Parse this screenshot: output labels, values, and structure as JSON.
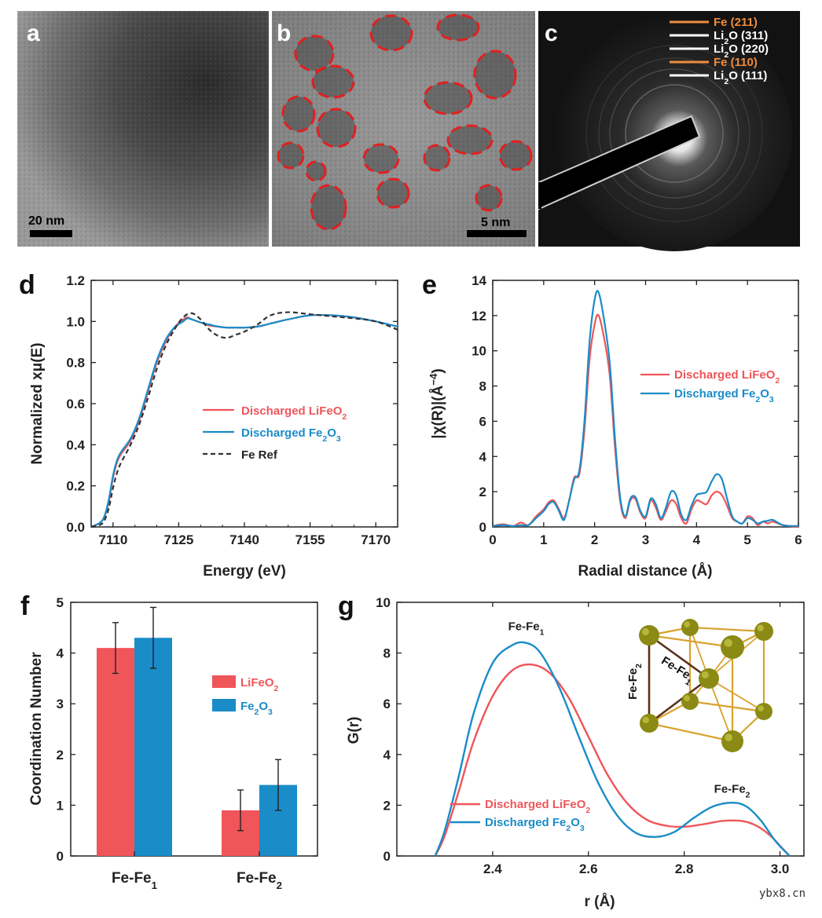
{
  "tem": {
    "a": {
      "letter": "a",
      "scale": "20 nm"
    },
    "b": {
      "letter": "b",
      "scale": "5 nm"
    },
    "c": {
      "letter": "c",
      "rings": [
        {
          "main": "Fe (211)",
          "sub": "",
          "rest": "",
          "color": "#f08c3c"
        },
        {
          "main": "Li",
          "sub": "2",
          "rest": "O (311)",
          "color": "#ffffff"
        },
        {
          "main": "Li",
          "sub": "2",
          "rest": "O (220)",
          "color": "#ffffff"
        },
        {
          "main": "Fe (110)",
          "sub": "",
          "rest": "",
          "color": "#f08c3c"
        },
        {
          "main": "Li",
          "sub": "2",
          "rest": "O (111)",
          "color": "#ffffff"
        }
      ]
    }
  },
  "colors": {
    "red": "#f0555a",
    "blue": "#1a8cc8",
    "ref": "#333333",
    "orange": "#f08c3c"
  },
  "chart_data": [
    {
      "panel": "d",
      "type": "line",
      "xlabel": "Energy (eV)",
      "ylabel": "Normalized xμ(E)",
      "xlim": [
        7105,
        7175
      ],
      "ylim": [
        0,
        1.2
      ],
      "xticks": [
        7110,
        7125,
        7140,
        7155,
        7170
      ],
      "yticks": [
        "0.0",
        "0.2",
        "0.4",
        "0.6",
        "0.8",
        "1.0",
        "1.2"
      ],
      "series": [
        {
          "name": "Discharged LiFeO2",
          "label_main": "Discharged LiFeO",
          "label_sub": "2",
          "label_after": "",
          "color": "#f0555a",
          "dash": "",
          "x": [
            7105,
            7107,
            7108,
            7109,
            7110,
            7111,
            7112,
            7114,
            7116,
            7118,
            7120,
            7122,
            7124,
            7126,
            7127,
            7128,
            7130,
            7132,
            7134,
            7136,
            7138,
            7140,
            7143,
            7146,
            7150,
            7155,
            7160,
            7165,
            7170,
            7175
          ],
          "y": [
            0.0,
            0.02,
            0.05,
            0.12,
            0.24,
            0.32,
            0.36,
            0.42,
            0.52,
            0.66,
            0.8,
            0.9,
            0.97,
            1.01,
            1.02,
            1.01,
            0.995,
            0.98,
            0.975,
            0.97,
            0.97,
            0.97,
            0.975,
            0.99,
            1.01,
            1.03,
            1.03,
            1.02,
            1.0,
            0.975
          ]
        },
        {
          "name": "Discharged Fe2O3",
          "label_main": "Discharged Fe",
          "label_sub": "2",
          "label_after": "O",
          "label_sub2": "3",
          "color": "#1a8cc8",
          "dash": "",
          "x": [
            7105,
            7107,
            7108,
            7109,
            7110,
            7111,
            7112,
            7114,
            7116,
            7118,
            7120,
            7122,
            7124,
            7126,
            7127,
            7128,
            7130,
            7132,
            7134,
            7136,
            7138,
            7140,
            7143,
            7146,
            7150,
            7155,
            7160,
            7165,
            7170,
            7175
          ],
          "y": [
            0.0,
            0.02,
            0.05,
            0.13,
            0.25,
            0.33,
            0.37,
            0.43,
            0.53,
            0.67,
            0.81,
            0.91,
            0.97,
            1.0,
            1.015,
            1.01,
            0.995,
            0.985,
            0.975,
            0.97,
            0.97,
            0.97,
            0.975,
            0.99,
            1.01,
            1.03,
            1.03,
            1.02,
            1.0,
            0.975
          ]
        },
        {
          "name": "Fe Ref",
          "label_main": "Fe Ref",
          "label_sub": "",
          "label_after": "",
          "color": "#333333",
          "dash": "6,4",
          "x": [
            7105,
            7107,
            7108,
            7109,
            7110,
            7111,
            7112,
            7114,
            7116,
            7118,
            7120,
            7122,
            7124,
            7126,
            7128,
            7130,
            7132,
            7134,
            7136,
            7138,
            7140,
            7143,
            7146,
            7150,
            7155,
            7160,
            7165,
            7170,
            7175
          ],
          "y": [
            0.0,
            0.01,
            0.03,
            0.09,
            0.19,
            0.27,
            0.32,
            0.4,
            0.5,
            0.63,
            0.77,
            0.88,
            0.96,
            1.02,
            1.04,
            1.01,
            0.96,
            0.93,
            0.92,
            0.935,
            0.95,
            0.985,
            1.03,
            1.045,
            1.035,
            1.025,
            1.015,
            1.0,
            0.96
          ]
        }
      ]
    },
    {
      "panel": "e",
      "type": "line",
      "xlabel": "Radial distance (Å)",
      "ylabel": "|χ(R)|(Å⁻⁴)",
      "ylabel_main": "|χ(R)|(Å",
      "ylabel_sup": "−4",
      "ylabel_end": ")",
      "xlim": [
        0,
        6
      ],
      "ylim": [
        0,
        14
      ],
      "xticks": [
        0,
        1,
        2,
        3,
        4,
        5,
        6
      ],
      "yticks": [
        0,
        2,
        4,
        6,
        8,
        10,
        12,
        14
      ],
      "series": [
        {
          "name": "Discharged LiFeO2",
          "label_main": "Discharged LiFeO",
          "label_sub": "2",
          "label_after": "",
          "color": "#f0555a",
          "x": [
            0,
            0.2,
            0.4,
            0.55,
            0.7,
            0.85,
            1.0,
            1.1,
            1.2,
            1.3,
            1.4,
            1.5,
            1.6,
            1.7,
            1.8,
            1.9,
            2.0,
            2.08,
            2.2,
            2.3,
            2.4,
            2.5,
            2.6,
            2.7,
            2.8,
            2.9,
            3.0,
            3.1,
            3.2,
            3.3,
            3.4,
            3.5,
            3.6,
            3.7,
            3.8,
            3.9,
            4.0,
            4.1,
            4.2,
            4.3,
            4.4,
            4.5,
            4.6,
            4.7,
            4.8,
            4.9,
            5.0,
            5.1,
            5.2,
            5.3,
            5.4,
            5.5,
            5.7,
            6.0
          ],
          "y": [
            0.05,
            0.15,
            0.05,
            0.25,
            0.1,
            0.6,
            1.0,
            1.4,
            1.5,
            1.0,
            0.5,
            1.5,
            2.8,
            3.0,
            5.5,
            9.5,
            11.5,
            12.0,
            10.5,
            8.5,
            4.5,
            1.5,
            0.5,
            1.5,
            1.6,
            0.8,
            0.5,
            1.5,
            1.1,
            0.4,
            0.9,
            1.5,
            1.3,
            0.5,
            0.2,
            1.0,
            1.5,
            1.4,
            1.3,
            1.8,
            2.0,
            1.8,
            1.2,
            0.5,
            0.3,
            0.2,
            0.6,
            0.5,
            0.1,
            0.3,
            0.2,
            0.3,
            0.1,
            0.0
          ]
        },
        {
          "name": "Discharged Fe2O3",
          "label_main": "Discharged Fe",
          "label_sub": "2",
          "label_after": "O",
          "label_sub2": "3",
          "color": "#1a8cc8",
          "x": [
            0,
            0.2,
            0.4,
            0.55,
            0.7,
            0.85,
            1.0,
            1.1,
            1.2,
            1.3,
            1.4,
            1.5,
            1.6,
            1.7,
            1.8,
            1.9,
            2.0,
            2.08,
            2.2,
            2.3,
            2.4,
            2.5,
            2.6,
            2.7,
            2.8,
            2.9,
            3.0,
            3.1,
            3.2,
            3.3,
            3.4,
            3.5,
            3.6,
            3.7,
            3.8,
            3.9,
            4.0,
            4.1,
            4.2,
            4.3,
            4.4,
            4.5,
            4.6,
            4.7,
            4.8,
            4.9,
            5.0,
            5.1,
            5.2,
            5.3,
            5.4,
            5.5,
            5.7,
            6.0
          ],
          "y": [
            0.05,
            0.1,
            0.05,
            0.1,
            0.1,
            0.5,
            0.9,
            1.3,
            1.4,
            0.9,
            0.4,
            1.5,
            2.7,
            3.2,
            6.0,
            10.5,
            12.9,
            13.3,
            11.5,
            9.2,
            5.0,
            1.7,
            0.6,
            1.6,
            1.7,
            0.9,
            0.6,
            1.6,
            1.3,
            0.5,
            1.1,
            2.0,
            1.8,
            0.7,
            0.4,
            1.2,
            1.8,
            1.9,
            2.0,
            2.6,
            3.0,
            2.7,
            1.6,
            0.6,
            0.3,
            0.2,
            0.5,
            0.4,
            0.2,
            0.3,
            0.35,
            0.4,
            0.1,
            0.05
          ]
        }
      ]
    },
    {
      "panel": "f",
      "type": "bar",
      "ylabel": "Coordination Number",
      "ylim": [
        0,
        5
      ],
      "yticks": [
        0,
        1,
        2,
        3,
        4,
        5
      ],
      "categories": [
        {
          "main": "Fe-Fe",
          "sub": "1"
        },
        {
          "main": "Fe-Fe",
          "sub": "2"
        }
      ],
      "series": [
        {
          "name": "LiFeO2",
          "label_main": "LiFeO",
          "label_sub": "2",
          "label_after": "",
          "color": "#f0555a",
          "values": [
            4.1,
            0.9
          ],
          "errors": [
            0.5,
            0.4
          ]
        },
        {
          "name": "Fe2O3",
          "label_main": "Fe",
          "label_sub": "2",
          "label_after": "O",
          "label_sub2": "3",
          "color": "#1a8cc8",
          "values": [
            4.3,
            1.4
          ],
          "errors": [
            0.6,
            0.5
          ]
        }
      ]
    },
    {
      "panel": "g",
      "type": "line",
      "xlabel": "r (Å)",
      "ylabel": "G(r)",
      "xlim": [
        2.2,
        3.05
      ],
      "ylim": [
        0,
        10
      ],
      "xticks": [
        "2.4",
        "2.6",
        "2.8",
        "3.0"
      ],
      "yticks": [
        0,
        2,
        4,
        6,
        8,
        10
      ],
      "annotations": [
        {
          "main": "Fe-Fe",
          "sub": "1",
          "x": 2.47,
          "y": 8.9
        },
        {
          "main": "Fe-Fe",
          "sub": "2",
          "x": 2.9,
          "y": 2.5
        }
      ],
      "structure_labels": [
        {
          "main": "Fe-Fe",
          "sub": "2"
        },
        {
          "main": "Fe-Fe",
          "sub": "1"
        }
      ],
      "series": [
        {
          "name": "Discharged LiFeO2",
          "label_main": "Discharged LiFeO",
          "label_sub": "2",
          "label_after": "",
          "color": "#f0555a",
          "x": [
            2.28,
            2.3,
            2.33,
            2.36,
            2.4,
            2.44,
            2.48,
            2.52,
            2.56,
            2.6,
            2.64,
            2.68,
            2.72,
            2.76,
            2.8,
            2.84,
            2.88,
            2.92,
            2.95,
            2.98,
            3.0,
            3.02
          ],
          "y": [
            0,
            0.8,
            2.6,
            4.5,
            6.3,
            7.3,
            7.55,
            7.2,
            6.2,
            4.7,
            3.2,
            2.1,
            1.45,
            1.2,
            1.15,
            1.25,
            1.38,
            1.38,
            1.2,
            0.8,
            0.4,
            0
          ]
        },
        {
          "name": "Discharged Fe2O3",
          "label_main": "Discharged Fe",
          "label_sub": "2",
          "label_after": "O",
          "label_sub2": "3",
          "color": "#1a8cc8",
          "x": [
            2.28,
            2.3,
            2.33,
            2.36,
            2.4,
            2.44,
            2.47,
            2.5,
            2.54,
            2.58,
            2.62,
            2.66,
            2.7,
            2.74,
            2.78,
            2.82,
            2.86,
            2.9,
            2.93,
            2.96,
            2.99,
            3.02
          ],
          "y": [
            0,
            1.0,
            3.2,
            5.6,
            7.6,
            8.3,
            8.4,
            8.0,
            6.6,
            4.7,
            2.9,
            1.6,
            0.9,
            0.75,
            0.95,
            1.5,
            1.95,
            2.1,
            1.95,
            1.4,
            0.6,
            0
          ]
        }
      ]
    }
  ],
  "watermark": "ybx8.cn"
}
